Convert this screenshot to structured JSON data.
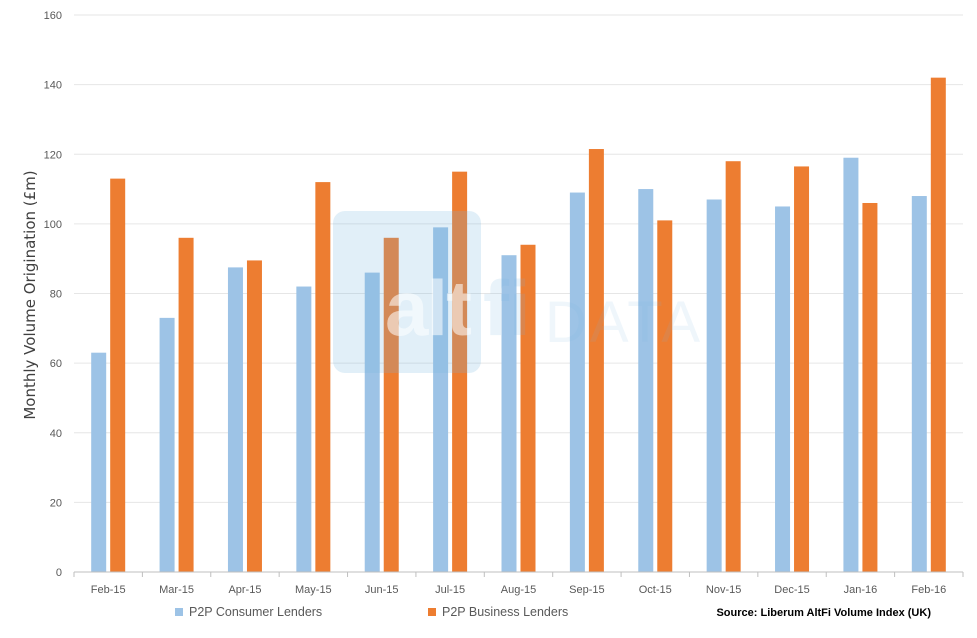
{
  "chart_data": {
    "type": "bar",
    "categories": [
      "Feb-15",
      "Mar-15",
      "Apr-15",
      "May-15",
      "Jun-15",
      "Jul-15",
      "Aug-15",
      "Sep-15",
      "Oct-15",
      "Nov-15",
      "Dec-15",
      "Jan-16",
      "Feb-16"
    ],
    "series": [
      {
        "name": "P2P Consumer Lenders",
        "color": "#9dc3e6",
        "values": [
          63,
          73,
          87.5,
          82,
          86,
          99,
          91,
          109,
          110,
          107,
          105,
          119,
          108
        ]
      },
      {
        "name": "P2P Business Lenders",
        "color": "#ed7d31",
        "values": [
          113,
          96,
          89.5,
          112,
          96,
          115,
          94,
          121.5,
          101,
          118,
          116.5,
          106,
          142
        ]
      }
    ],
    "ylabel": "Monthly Volume Origination (£m)",
    "ylim": [
      0,
      160
    ],
    "yticks": [
      0,
      20,
      40,
      60,
      80,
      100,
      120,
      140,
      160
    ],
    "grid": true,
    "legend_position": "bottom-left"
  },
  "watermark": {
    "part1": "alt",
    "part2": "fi",
    "part3": "DATA"
  },
  "source": "Source: Liberum AltFi Volume Index (UK)"
}
